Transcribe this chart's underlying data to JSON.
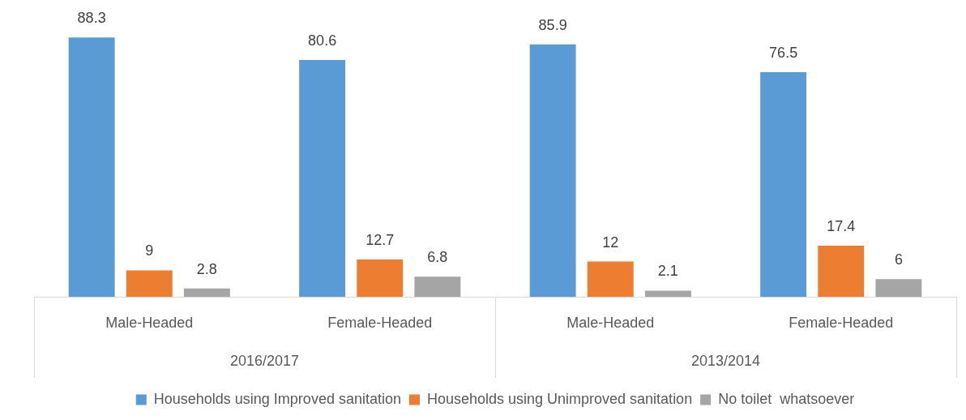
{
  "chart_data": {
    "type": "bar",
    "categories": [
      "Male-Headed",
      "Female-Headed",
      "Male-Headed",
      "Female-Headed"
    ],
    "series": [
      {
        "name": "Households using Improved sanitation",
        "color": "#5b9bd5",
        "values": [
          88.3,
          80.6,
          85.9,
          76.5
        ]
      },
      {
        "name": "Households using Unimproved sanitation",
        "color": "#ed7d31",
        "values": [
          9,
          12.7,
          12,
          17.4
        ]
      },
      {
        "name": "No toilet  whatsoever",
        "color": "#a5a5a5",
        "values": [
          2.8,
          6.8,
          2.1,
          6
        ]
      }
    ],
    "annotations": [
      "2016/2017",
      "2013/2014"
    ],
    "data_labels": true,
    "legend": "bottom",
    "grid": false
  }
}
